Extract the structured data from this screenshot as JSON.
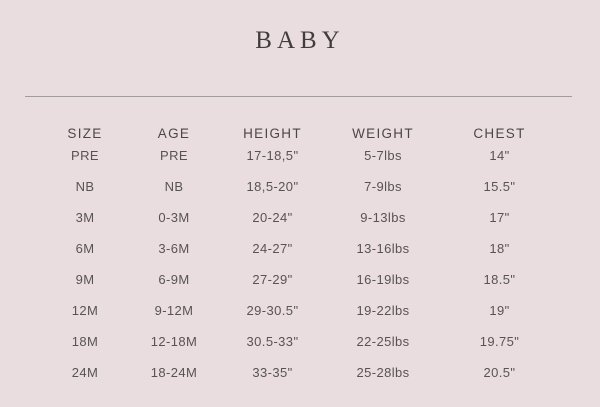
{
  "page": {
    "title": "BABY",
    "background_color": "#EADDE0",
    "divider_color": "#A49B9E",
    "text_color": "#585354"
  },
  "table": {
    "headers": [
      "SIZE",
      "AGE",
      "HEIGHT",
      "WEIGHT",
      "CHEST"
    ],
    "rows": [
      [
        "PRE",
        "PRE",
        "17-18,5\"",
        "5-7lbs",
        "14\""
      ],
      [
        "NB",
        "NB",
        "18,5-20\"",
        "7-9lbs",
        "15.5\""
      ],
      [
        "3M",
        "0-3M",
        "20-24\"",
        "9-13lbs",
        "17\""
      ],
      [
        "6M",
        "3-6M",
        "24-27\"",
        "13-16lbs",
        "18\""
      ],
      [
        "9M",
        "6-9M",
        "27-29\"",
        "16-19lbs",
        "18.5\""
      ],
      [
        "12M",
        "9-12M",
        "29-30.5\"",
        "19-22lbs",
        "19\""
      ],
      [
        "18M",
        "12-18M",
        "30.5-33\"",
        "22-25lbs",
        "19.75\""
      ],
      [
        "24M",
        "18-24M",
        "33-35\"",
        "25-28lbs",
        "20.5\""
      ]
    ]
  }
}
